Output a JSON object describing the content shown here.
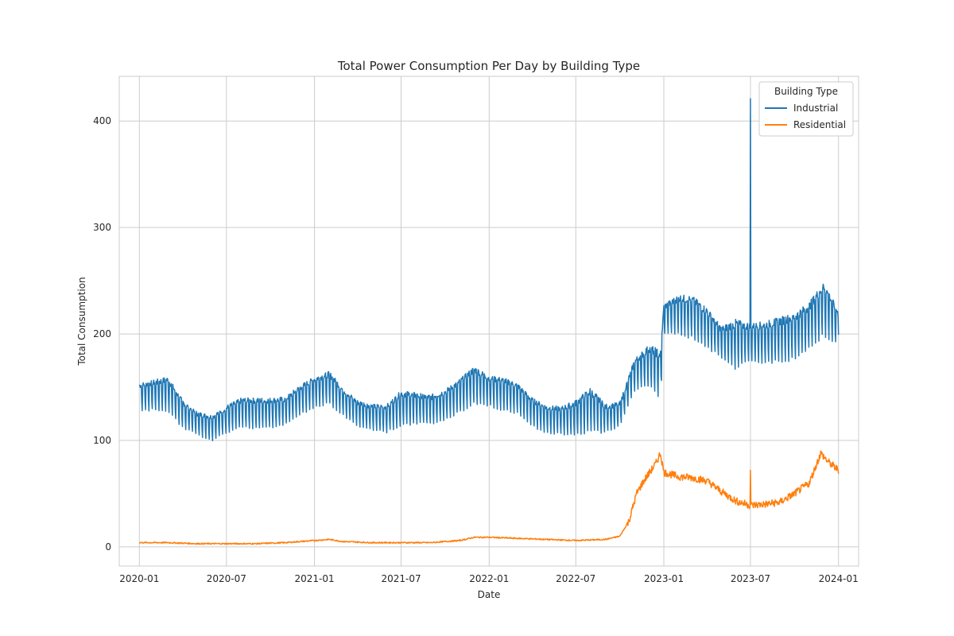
{
  "chart_data": {
    "type": "line",
    "title": "Total Power Consumption Per Day by Building Type",
    "xlabel": "Date",
    "ylabel": "Total Consumption",
    "xlim": [
      "2019-11-20",
      "2024-02-12"
    ],
    "ylim": [
      -18,
      442
    ],
    "x_ticks": [
      "2020-01",
      "2020-07",
      "2021-01",
      "2021-07",
      "2022-01",
      "2022-07",
      "2023-01",
      "2023-07",
      "2024-01"
    ],
    "y_ticks": [
      0,
      100,
      200,
      300,
      400
    ],
    "grid": true,
    "legend": {
      "title": "Building Type",
      "position": "top-right"
    },
    "series": [
      {
        "name": "Industrial",
        "color": "#1f77b4",
        "weekly_oscillation": true,
        "spikes": [
          {
            "date": "2023-07-01",
            "value": 421
          }
        ],
        "points": [
          [
            "2020-01-01",
            126,
            154
          ],
          [
            "2020-02-01",
            127,
            157
          ],
          [
            "2020-03-01",
            126,
            160
          ],
          [
            "2020-04-01",
            110,
            138
          ],
          [
            "2020-05-01",
            104,
            127
          ],
          [
            "2020-06-01",
            99,
            124
          ],
          [
            "2020-07-01",
            105,
            133
          ],
          [
            "2020-08-01",
            111,
            140
          ],
          [
            "2020-09-01",
            110,
            140
          ],
          [
            "2020-10-01",
            111,
            140
          ],
          [
            "2020-11-01",
            113,
            141
          ],
          [
            "2020-12-01",
            122,
            152
          ],
          [
            "2021-01-01",
            130,
            160
          ],
          [
            "2021-02-01",
            133,
            165
          ],
          [
            "2021-03-01",
            122,
            150
          ],
          [
            "2021-04-01",
            112,
            138
          ],
          [
            "2021-05-01",
            109,
            134
          ],
          [
            "2021-06-01",
            106,
            134
          ],
          [
            "2021-07-01",
            113,
            147
          ],
          [
            "2021-08-01",
            114,
            145
          ],
          [
            "2021-09-01",
            114,
            143
          ],
          [
            "2021-10-01",
            118,
            148
          ],
          [
            "2021-11-01",
            125,
            158
          ],
          [
            "2021-12-01",
            133,
            170
          ],
          [
            "2022-01-01",
            131,
            161
          ],
          [
            "2022-02-01",
            126,
            159
          ],
          [
            "2022-03-01",
            124,
            154
          ],
          [
            "2022-04-01",
            112,
            140
          ],
          [
            "2022-05-01",
            106,
            133
          ],
          [
            "2022-06-01",
            104,
            132
          ],
          [
            "2022-07-01",
            104,
            138
          ],
          [
            "2022-08-01",
            106,
            150
          ],
          [
            "2022-09-01",
            106,
            134
          ],
          [
            "2022-10-01",
            112,
            136
          ],
          [
            "2022-11-01",
            145,
            177
          ],
          [
            "2022-12-01",
            150,
            190
          ],
          [
            "2022-12-25",
            134,
            185
          ],
          [
            "2023-01-01",
            200,
            228
          ],
          [
            "2023-02-01",
            198,
            237
          ],
          [
            "2023-03-01",
            194,
            236
          ],
          [
            "2023-04-01",
            186,
            225
          ],
          [
            "2023-05-01",
            176,
            207
          ],
          [
            "2023-06-01",
            164,
            214
          ],
          [
            "2023-07-01",
            174,
            210
          ],
          [
            "2023-08-01",
            170,
            212
          ],
          [
            "2023-09-01",
            172,
            216
          ],
          [
            "2023-10-01",
            174,
            220
          ],
          [
            "2023-11-01",
            184,
            230
          ],
          [
            "2023-12-01",
            196,
            250
          ],
          [
            "2024-01-01",
            187,
            222
          ]
        ]
      },
      {
        "name": "Residential",
        "color": "#ff7f0e",
        "weekly_oscillation": false,
        "spikes": [
          {
            "date": "2023-07-01",
            "value": 72
          }
        ],
        "points": [
          [
            "2020-01-01",
            4
          ],
          [
            "2020-03-01",
            4
          ],
          [
            "2020-05-01",
            3
          ],
          [
            "2020-07-01",
            3
          ],
          [
            "2020-09-01",
            3
          ],
          [
            "2020-11-01",
            4
          ],
          [
            "2021-01-01",
            6
          ],
          [
            "2021-02-01",
            7
          ],
          [
            "2021-03-01",
            5
          ],
          [
            "2021-05-01",
            4
          ],
          [
            "2021-07-01",
            4
          ],
          [
            "2021-09-01",
            4
          ],
          [
            "2021-11-01",
            6
          ],
          [
            "2021-12-01",
            9
          ],
          [
            "2022-01-01",
            9
          ],
          [
            "2022-03-01",
            8
          ],
          [
            "2022-05-01",
            7
          ],
          [
            "2022-07-01",
            6
          ],
          [
            "2022-09-01",
            7
          ],
          [
            "2022-10-01",
            10
          ],
          [
            "2022-10-20",
            24
          ],
          [
            "2022-11-05",
            50
          ],
          [
            "2022-11-20",
            62
          ],
          [
            "2022-12-15",
            78
          ],
          [
            "2022-12-25",
            88
          ],
          [
            "2023-01-01",
            70
          ],
          [
            "2023-02-01",
            66
          ],
          [
            "2023-03-01",
            65
          ],
          [
            "2023-04-01",
            62
          ],
          [
            "2023-05-01",
            52
          ],
          [
            "2023-06-01",
            43
          ],
          [
            "2023-07-01",
            39
          ],
          [
            "2023-08-01",
            40
          ],
          [
            "2023-09-01",
            42
          ],
          [
            "2023-10-01",
            50
          ],
          [
            "2023-11-01",
            60
          ],
          [
            "2023-11-25",
            88
          ],
          [
            "2023-12-10",
            80
          ],
          [
            "2024-01-01",
            72
          ]
        ]
      }
    ]
  }
}
